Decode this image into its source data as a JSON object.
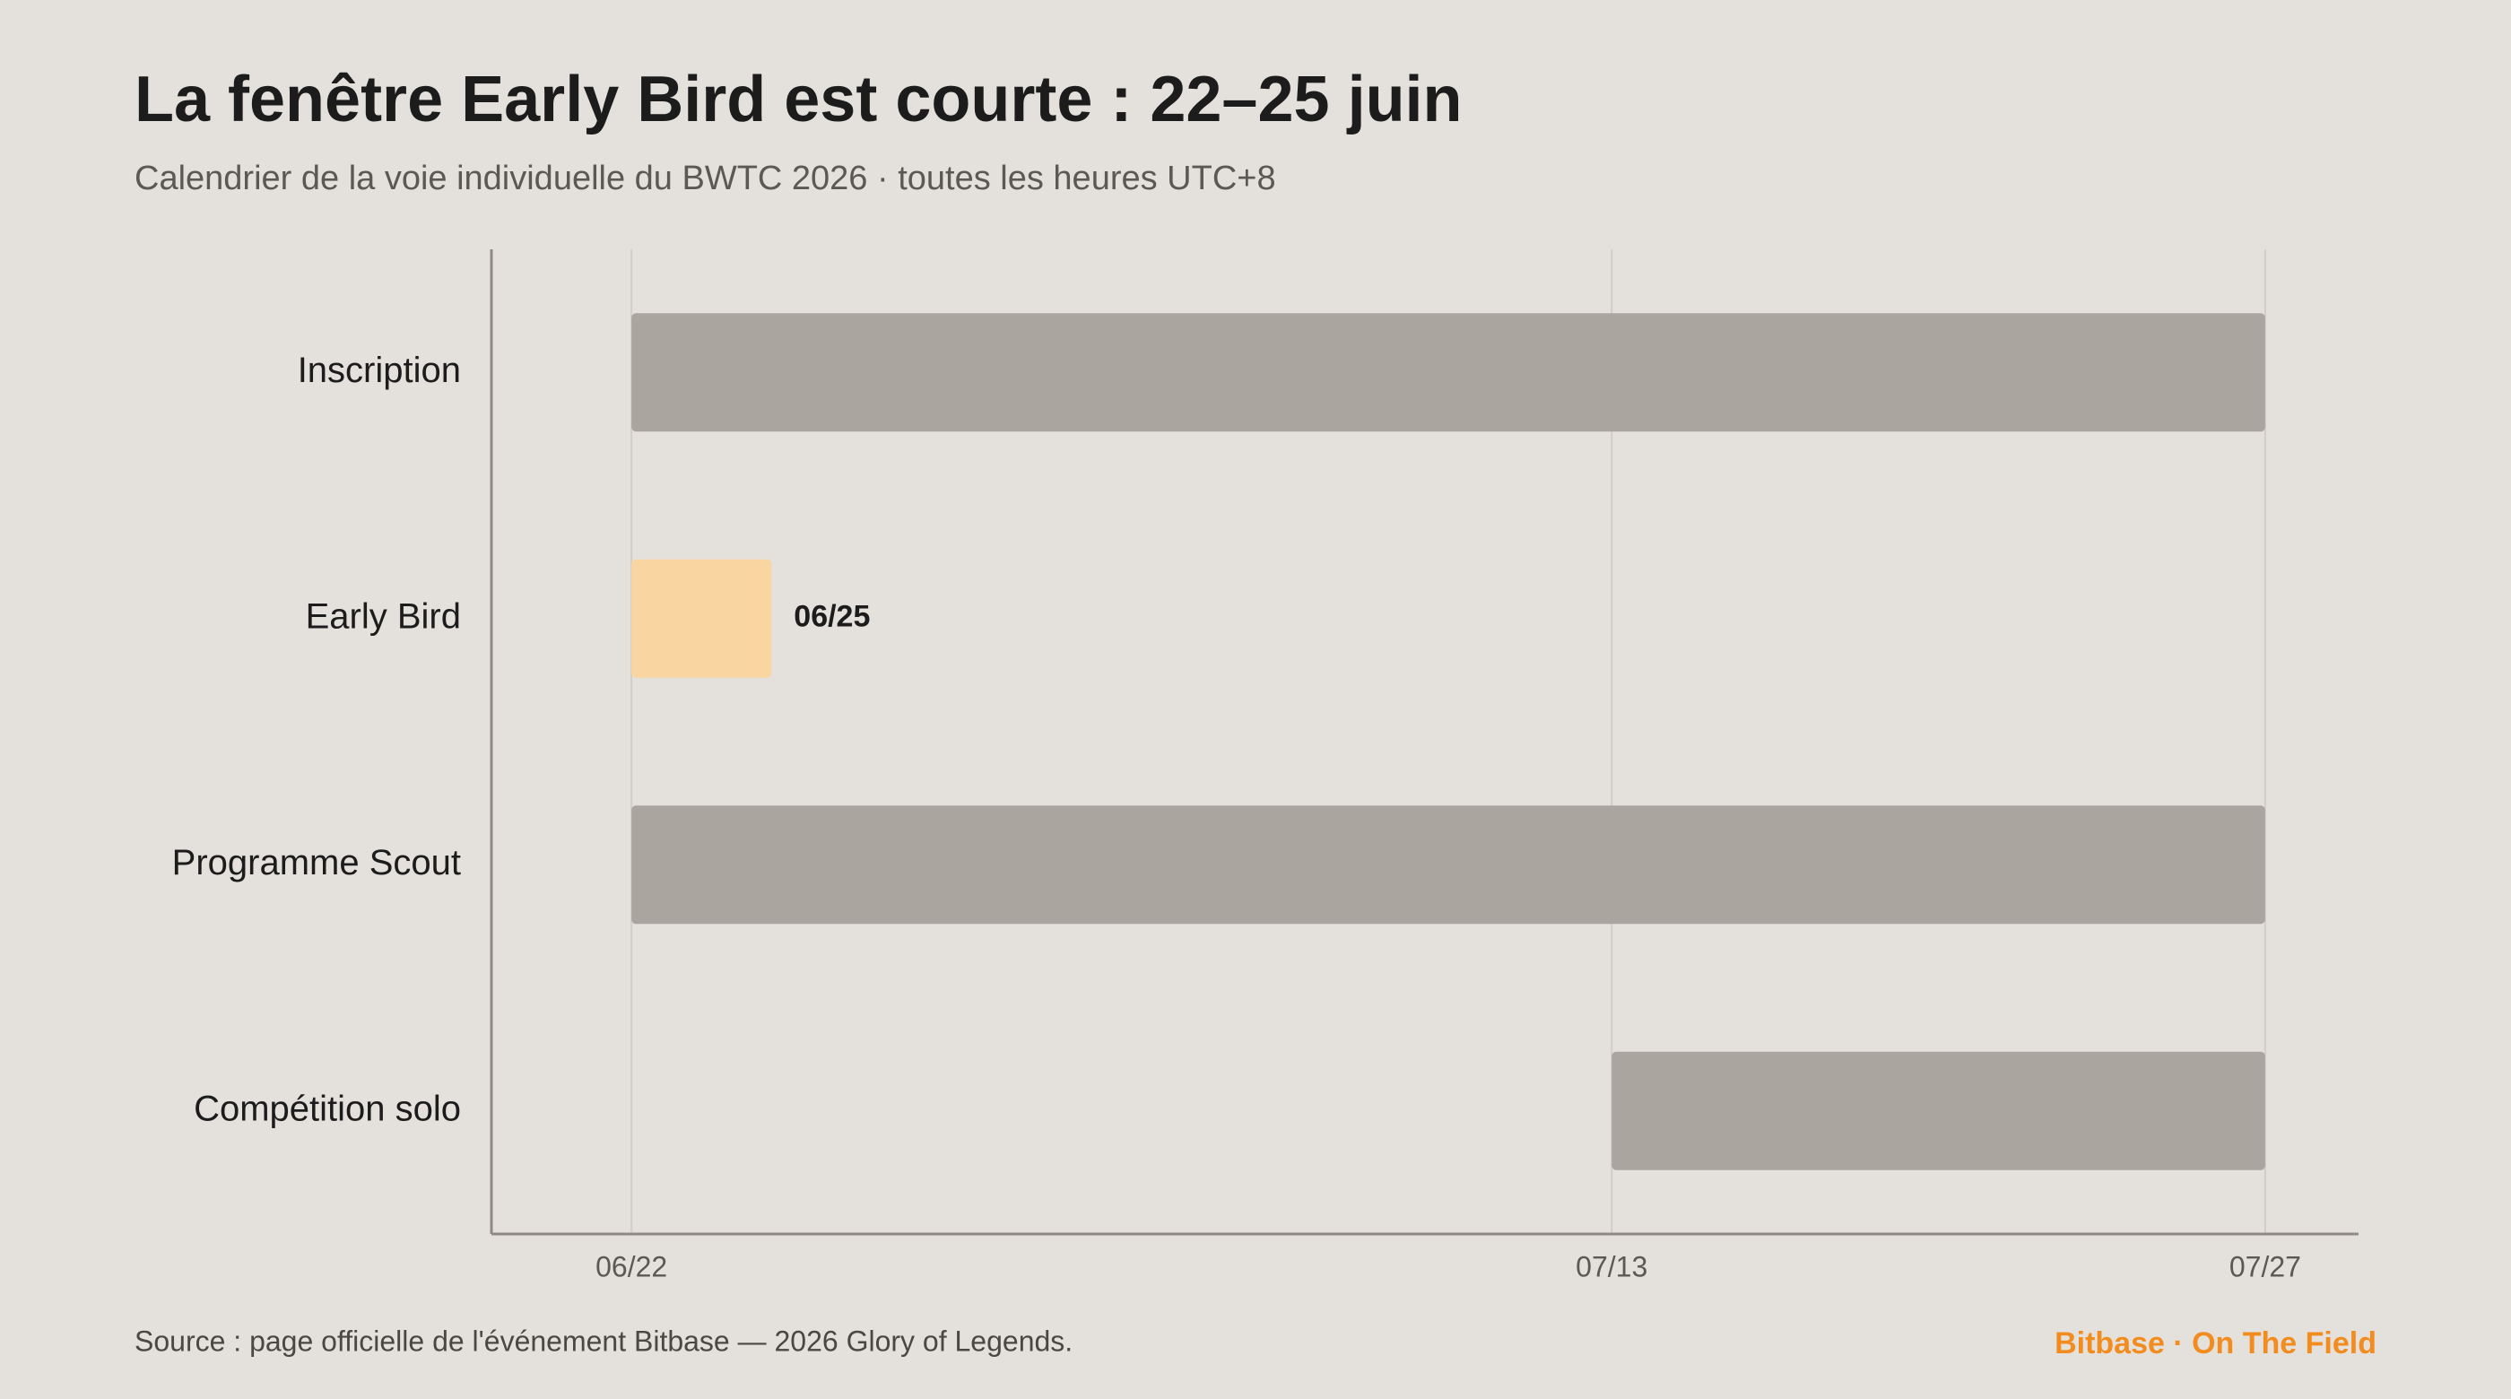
{
  "chart_data": {
    "type": "gantt",
    "title": "La fenêtre Early Bird est courte : 22–25 juin",
    "subtitle": "Calendrier de la voie individuelle du BWTC 2026 · toutes les heures UTC+8",
    "categories": [
      "Inscription",
      "Early Bird",
      "Programme Scout",
      "Compétition solo"
    ],
    "start": [
      "06/22",
      "06/22",
      "06/22",
      "07/13"
    ],
    "end": [
      "07/27",
      "06/25",
      "07/27",
      "07/27"
    ],
    "colors": [
      "#aaa59f",
      "#f9d5a1",
      "#aaa59f",
      "#aaa59f"
    ],
    "xlim": [
      "06/19",
      "07/29"
    ],
    "xticks": [
      "06/22",
      "07/13",
      "07/27"
    ],
    "grid": true,
    "source": "Source : page officielle de l'événement Bitbase — 2026 Glory of Legends.",
    "brand": "Bitbase · On The Field"
  }
}
